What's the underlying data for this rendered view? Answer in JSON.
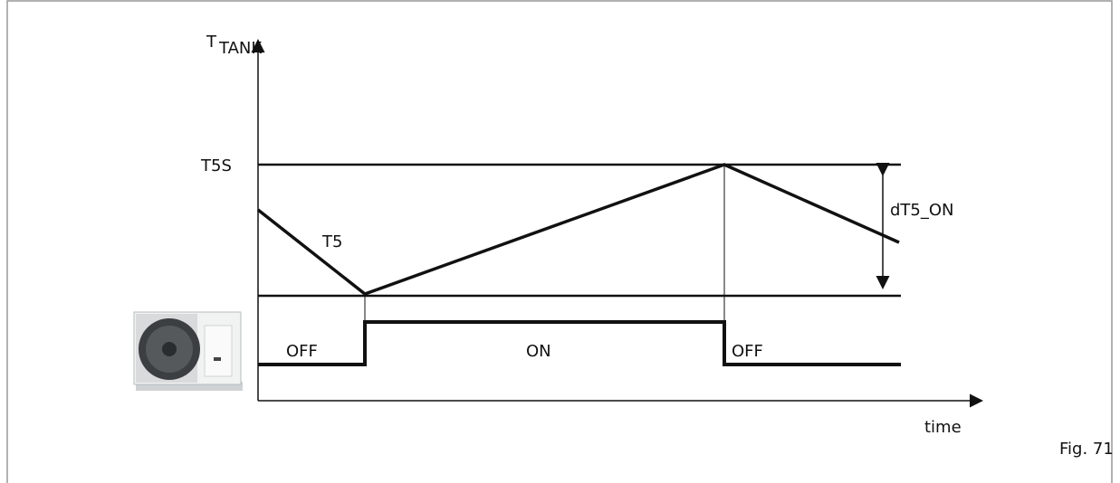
{
  "axis": {
    "y_label": "T",
    "y_label_subscript": "TANK",
    "x_label": "time"
  },
  "levels": {
    "upper": "T5S",
    "curve": "T5",
    "differential": "dT5_ON"
  },
  "states": [
    "OFF",
    "ON",
    "OFF"
  ],
  "caption": "Fig. 71"
}
